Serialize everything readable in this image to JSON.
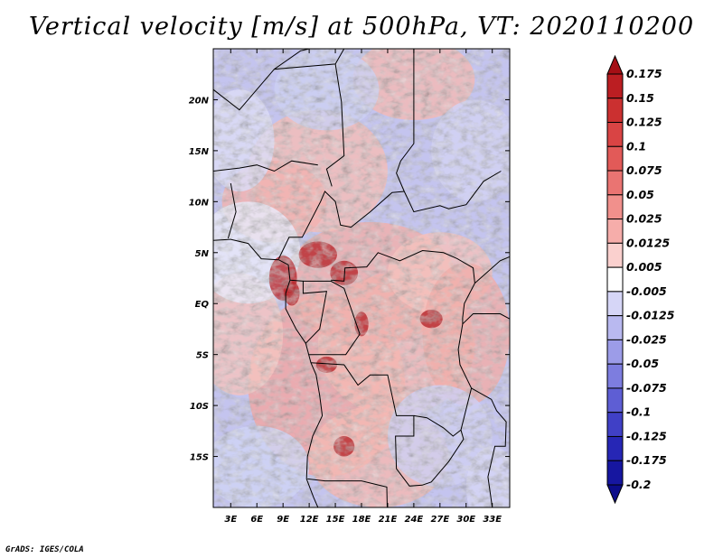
{
  "title": "Vertical velocity [m/s] at 500hPa, VT: 2020110200",
  "footer": "GrADS: IGES/COLA",
  "chart_data": {
    "type": "heatmap",
    "variable": "Vertical velocity",
    "units": "m/s",
    "level": "500hPa",
    "valid_time": "2020110200",
    "lon_range": [
      1,
      35
    ],
    "lat_range": [
      -20,
      25
    ],
    "x_ticks": [
      "3E",
      "6E",
      "9E",
      "12E",
      "15E",
      "18E",
      "21E",
      "24E",
      "27E",
      "30E",
      "33E"
    ],
    "x_tick_values": [
      3,
      6,
      9,
      12,
      15,
      18,
      21,
      24,
      27,
      30,
      33
    ],
    "y_ticks": [
      "20N",
      "15N",
      "10N",
      "5N",
      "EQ",
      "5S",
      "10S",
      "15S"
    ],
    "y_tick_values": [
      20,
      15,
      10,
      5,
      0,
      -5,
      -10,
      -15
    ],
    "colorbar": {
      "labels": [
        "0.175",
        "0.15",
        "0.125",
        "0.1",
        "0.075",
        "0.05",
        "0.025",
        "0.0125",
        "0.005",
        "-0.005",
        "-0.0125",
        "-0.025",
        "-0.05",
        "-0.075",
        "-0.1",
        "-0.125",
        "-0.175",
        "-0.2"
      ],
      "colors": [
        "#a50f15",
        "#bb1e22",
        "#cb3030",
        "#d94444",
        "#e25a58",
        "#ea7472",
        "#f1908c",
        "#f6adaa",
        "#fad0ce",
        "#ffffff",
        "#d6d6f7",
        "#b9b9f0",
        "#9c9ce8",
        "#7d7ddf",
        "#5e5ed4",
        "#4040c6",
        "#2626b5",
        "#1616a0",
        "#0c0c8a"
      ]
    },
    "grid": false
  }
}
